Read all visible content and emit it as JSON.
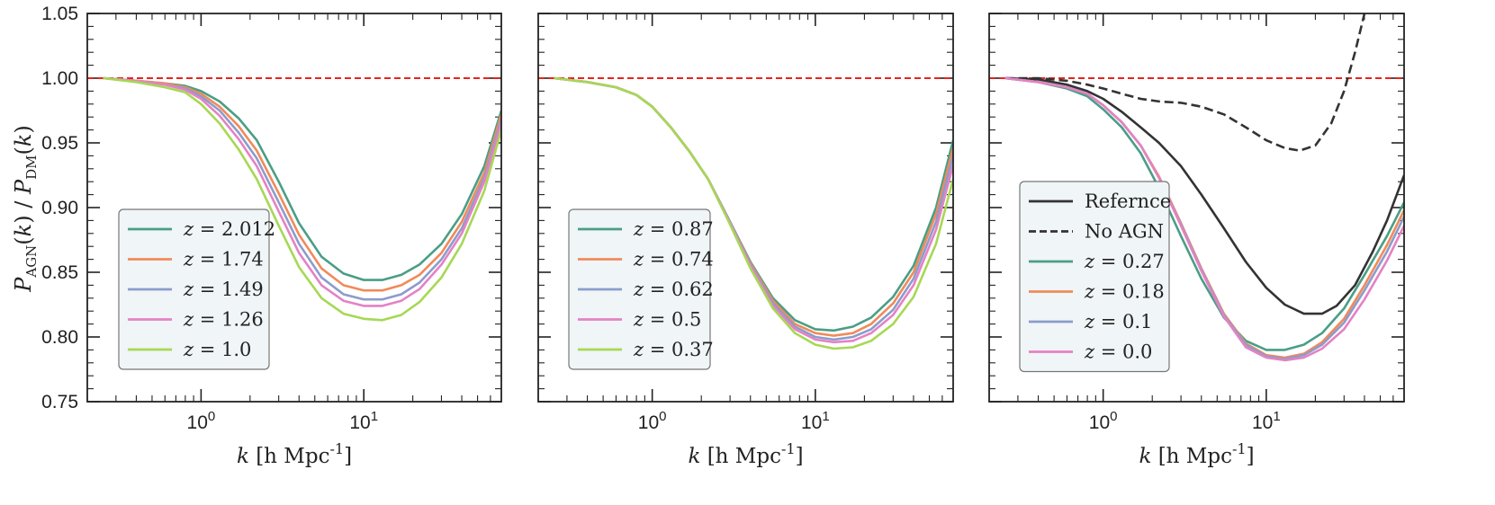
{
  "figure": {
    "ylabel": "P_AGN(k) / P_DM(k)",
    "ylabel_display": "PAGN(k) / PDM(k)"
  },
  "chart_data": [
    {
      "type": "line",
      "panel": "left",
      "xscale": "log",
      "xlim": [
        0.2,
        70
      ],
      "ylim": [
        0.75,
        1.05
      ],
      "xlabel": "k [h Mpc^-1]",
      "ylabel": "P_AGN(k) / P_DM(k)",
      "xticks": [
        {
          "value": 1,
          "label": "10^0"
        },
        {
          "value": 10,
          "label": "10^1"
        }
      ],
      "yticks": [
        0.75,
        0.8,
        0.85,
        0.9,
        0.95,
        1.0,
        1.05
      ],
      "ytick_labels": [
        "0.75",
        "0.80",
        "0.85",
        "0.90",
        "0.95",
        "1.00",
        "1.05"
      ],
      "reference_line": {
        "y": 1.0,
        "color": "#e8231d",
        "style": "dashed"
      },
      "legend": {
        "placement": "lower-left"
      },
      "series": [
        {
          "name": "z = 2.012",
          "z": "2.012",
          "color": "#4a9e86",
          "style": "solid",
          "x": [
            0.25,
            0.4,
            0.6,
            0.8,
            1.0,
            1.3,
            1.7,
            2.2,
            3.0,
            4.0,
            5.5,
            7.5,
            10,
            13,
            17,
            22,
            30,
            40,
            55,
            70
          ],
          "y": [
            1.0,
            0.998,
            0.996,
            0.994,
            0.99,
            0.982,
            0.969,
            0.952,
            0.92,
            0.888,
            0.862,
            0.849,
            0.844,
            0.844,
            0.848,
            0.856,
            0.872,
            0.895,
            0.932,
            0.975
          ]
        },
        {
          "name": "z = 1.74",
          "z": "1.74",
          "color": "#f08a5a",
          "style": "solid",
          "x": [
            0.25,
            0.4,
            0.6,
            0.8,
            1.0,
            1.3,
            1.7,
            2.2,
            3.0,
            4.0,
            5.5,
            7.5,
            10,
            13,
            17,
            22,
            30,
            40,
            55,
            70
          ],
          "y": [
            1.0,
            0.998,
            0.996,
            0.993,
            0.988,
            0.978,
            0.963,
            0.944,
            0.911,
            0.879,
            0.853,
            0.84,
            0.836,
            0.836,
            0.84,
            0.848,
            0.865,
            0.889,
            0.927,
            0.972
          ]
        },
        {
          "name": "z = 1.49",
          "z": "1.49",
          "color": "#8c9ccc",
          "style": "solid",
          "x": [
            0.25,
            0.4,
            0.6,
            0.8,
            1.0,
            1.3,
            1.7,
            2.2,
            3.0,
            4.0,
            5.5,
            7.5,
            10,
            13,
            17,
            22,
            30,
            40,
            55,
            70
          ],
          "y": [
            1.0,
            0.998,
            0.995,
            0.992,
            0.986,
            0.975,
            0.958,
            0.938,
            0.904,
            0.872,
            0.846,
            0.833,
            0.829,
            0.829,
            0.833,
            0.842,
            0.86,
            0.884,
            0.923,
            0.968
          ]
        },
        {
          "name": "z = 1.26",
          "z": "1.26",
          "color": "#e482c4",
          "style": "solid",
          "x": [
            0.25,
            0.4,
            0.6,
            0.8,
            1.0,
            1.3,
            1.7,
            2.2,
            3.0,
            4.0,
            5.5,
            7.5,
            10,
            13,
            17,
            22,
            30,
            40,
            55,
            70
          ],
          "y": [
            1.0,
            0.998,
            0.995,
            0.991,
            0.984,
            0.971,
            0.953,
            0.932,
            0.897,
            0.865,
            0.84,
            0.828,
            0.824,
            0.824,
            0.828,
            0.837,
            0.856,
            0.88,
            0.92,
            0.965
          ]
        },
        {
          "name": "z = 1.0",
          "z": "1.0",
          "color": "#a6d854",
          "style": "solid",
          "x": [
            0.25,
            0.4,
            0.6,
            0.8,
            1.0,
            1.3,
            1.7,
            2.2,
            3.0,
            4.0,
            5.5,
            7.5,
            10,
            13,
            17,
            22,
            30,
            40,
            55,
            70
          ],
          "y": [
            1.0,
            0.997,
            0.993,
            0.989,
            0.98,
            0.965,
            0.945,
            0.922,
            0.886,
            0.854,
            0.83,
            0.818,
            0.814,
            0.813,
            0.817,
            0.827,
            0.846,
            0.872,
            0.913,
            0.96
          ]
        }
      ]
    },
    {
      "type": "line",
      "panel": "middle",
      "xscale": "log",
      "xlim": [
        0.2,
        70
      ],
      "ylim": [
        0.75,
        1.05
      ],
      "xlabel": "k [h Mpc^-1]",
      "xticks": [
        {
          "value": 1,
          "label": "10^0"
        },
        {
          "value": 10,
          "label": "10^1"
        }
      ],
      "reference_line": {
        "y": 1.0,
        "color": "#e8231d",
        "style": "dashed"
      },
      "legend": {
        "placement": "lower-left"
      },
      "series": [
        {
          "name": "z = 0.87",
          "z": "0.87",
          "color": "#4a9e86",
          "style": "solid",
          "x": [
            0.25,
            0.4,
            0.6,
            0.8,
            1.0,
            1.3,
            1.7,
            2.2,
            3.0,
            4.0,
            5.5,
            7.5,
            10,
            13,
            17,
            22,
            30,
            40,
            55,
            70
          ],
          "y": [
            1.0,
            0.997,
            0.993,
            0.987,
            0.978,
            0.962,
            0.943,
            0.922,
            0.889,
            0.858,
            0.83,
            0.813,
            0.806,
            0.805,
            0.808,
            0.815,
            0.831,
            0.855,
            0.9,
            0.952
          ]
        },
        {
          "name": "z = 0.74",
          "z": "0.74",
          "color": "#f08a5a",
          "style": "solid",
          "x": [
            0.25,
            0.4,
            0.6,
            0.8,
            1.0,
            1.3,
            1.7,
            2.2,
            3.0,
            4.0,
            5.5,
            7.5,
            10,
            13,
            17,
            22,
            30,
            40,
            55,
            70
          ],
          "y": [
            1.0,
            0.997,
            0.993,
            0.987,
            0.978,
            0.962,
            0.943,
            0.922,
            0.889,
            0.857,
            0.828,
            0.81,
            0.803,
            0.801,
            0.803,
            0.81,
            0.826,
            0.85,
            0.895,
            0.946
          ]
        },
        {
          "name": "z = 0.62",
          "z": "0.62",
          "color": "#8c9ccc",
          "style": "solid",
          "x": [
            0.25,
            0.4,
            0.6,
            0.8,
            1.0,
            1.3,
            1.7,
            2.2,
            3.0,
            4.0,
            5.5,
            7.5,
            10,
            13,
            17,
            22,
            30,
            40,
            55,
            70
          ],
          "y": [
            1.0,
            0.997,
            0.993,
            0.987,
            0.978,
            0.962,
            0.943,
            0.922,
            0.889,
            0.856,
            0.826,
            0.808,
            0.8,
            0.798,
            0.8,
            0.806,
            0.821,
            0.845,
            0.889,
            0.94
          ]
        },
        {
          "name": "z = 0.5",
          "z": "0.5",
          "color": "#e482c4",
          "style": "solid",
          "x": [
            0.25,
            0.4,
            0.6,
            0.8,
            1.0,
            1.3,
            1.7,
            2.2,
            3.0,
            4.0,
            5.5,
            7.5,
            10,
            13,
            17,
            22,
            30,
            40,
            55,
            70
          ],
          "y": [
            1.0,
            0.997,
            0.993,
            0.987,
            0.978,
            0.962,
            0.943,
            0.922,
            0.888,
            0.855,
            0.824,
            0.806,
            0.798,
            0.796,
            0.797,
            0.803,
            0.817,
            0.84,
            0.883,
            0.933
          ]
        },
        {
          "name": "z = 0.37",
          "z": "0.37",
          "color": "#a6d854",
          "style": "solid",
          "x": [
            0.25,
            0.4,
            0.6,
            0.8,
            1.0,
            1.3,
            1.7,
            2.2,
            3.0,
            4.0,
            5.5,
            7.5,
            10,
            13,
            17,
            22,
            30,
            40,
            55,
            70
          ],
          "y": [
            1.0,
            0.997,
            0.993,
            0.987,
            0.978,
            0.962,
            0.943,
            0.922,
            0.887,
            0.853,
            0.822,
            0.803,
            0.794,
            0.791,
            0.792,
            0.797,
            0.81,
            0.831,
            0.872,
            0.922
          ]
        }
      ]
    },
    {
      "type": "line",
      "panel": "right",
      "xscale": "log",
      "xlim": [
        0.2,
        70
      ],
      "ylim": [
        0.75,
        1.05
      ],
      "xlabel": "k [h Mpc^-1]",
      "xticks": [
        {
          "value": 1,
          "label": "10^0"
        },
        {
          "value": 10,
          "label": "10^1"
        }
      ],
      "reference_line": {
        "y": 1.0,
        "color": "#e8231d",
        "style": "dashed"
      },
      "legend": {
        "placement": "lower-left"
      },
      "series": [
        {
          "name": "Refernce",
          "color": "#333333",
          "style": "solid",
          "x": [
            0.25,
            0.4,
            0.6,
            0.8,
            1.0,
            1.3,
            1.7,
            2.2,
            3.0,
            4.0,
            5.5,
            7.5,
            10,
            13,
            17,
            22,
            27,
            35,
            45,
            55,
            70
          ],
          "y": [
            1.0,
            0.999,
            0.995,
            0.99,
            0.984,
            0.974,
            0.962,
            0.95,
            0.932,
            0.91,
            0.884,
            0.858,
            0.838,
            0.825,
            0.818,
            0.818,
            0.824,
            0.84,
            0.866,
            0.89,
            0.925
          ]
        },
        {
          "name": "No AGN",
          "color": "#333333",
          "style": "dashed",
          "x": [
            0.25,
            0.4,
            0.6,
            0.8,
            1.0,
            1.3,
            1.7,
            2.2,
            3.0,
            4.0,
            5.5,
            7.5,
            10,
            13,
            16,
            20,
            25,
            30,
            35,
            40
          ],
          "y": [
            1.0,
            1.0,
            0.998,
            0.995,
            0.992,
            0.988,
            0.984,
            0.982,
            0.981,
            0.978,
            0.972,
            0.962,
            0.952,
            0.946,
            0.944,
            0.948,
            0.965,
            0.99,
            1.02,
            1.05
          ]
        },
        {
          "name": "z = 0.27",
          "z": "0.27",
          "color": "#4a9e86",
          "style": "solid",
          "x": [
            0.25,
            0.4,
            0.6,
            0.8,
            1.0,
            1.3,
            1.7,
            2.2,
            3.0,
            4.0,
            5.5,
            7.5,
            10,
            13,
            17,
            22,
            30,
            40,
            55,
            70
          ],
          "y": [
            1.0,
            0.997,
            0.992,
            0.986,
            0.976,
            0.962,
            0.942,
            0.915,
            0.878,
            0.845,
            0.815,
            0.797,
            0.79,
            0.79,
            0.794,
            0.803,
            0.822,
            0.848,
            0.878,
            0.904
          ]
        },
        {
          "name": "z = 0.18",
          "z": "0.18",
          "color": "#f08a5a",
          "style": "solid",
          "x": [
            0.25,
            0.4,
            0.6,
            0.8,
            1.0,
            1.3,
            1.7,
            2.2,
            3.0,
            4.0,
            5.5,
            7.5,
            10,
            13,
            17,
            22,
            30,
            40,
            55,
            70
          ],
          "y": [
            1.0,
            0.997,
            0.993,
            0.988,
            0.979,
            0.966,
            0.948,
            0.924,
            0.888,
            0.853,
            0.818,
            0.795,
            0.786,
            0.784,
            0.787,
            0.796,
            0.814,
            0.84,
            0.871,
            0.898
          ]
        },
        {
          "name": "z = 0.1",
          "z": "0.1",
          "color": "#8c9ccc",
          "style": "solid",
          "x": [
            0.25,
            0.4,
            0.6,
            0.8,
            1.0,
            1.3,
            1.7,
            2.2,
            3.0,
            4.0,
            5.5,
            7.5,
            10,
            13,
            17,
            22,
            30,
            40,
            55,
            70
          ],
          "y": [
            1.0,
            0.997,
            0.993,
            0.988,
            0.979,
            0.966,
            0.948,
            0.923,
            0.887,
            0.852,
            0.817,
            0.794,
            0.785,
            0.783,
            0.786,
            0.794,
            0.811,
            0.836,
            0.866,
            0.893
          ]
        },
        {
          "name": "z = 0.0",
          "z": "0.0",
          "color": "#e482c4",
          "style": "solid",
          "x": [
            0.25,
            0.4,
            0.6,
            0.8,
            1.0,
            1.3,
            1.7,
            2.2,
            3.0,
            4.0,
            5.5,
            7.5,
            10,
            13,
            17,
            22,
            30,
            40,
            55,
            70
          ],
          "y": [
            1.0,
            0.997,
            0.993,
            0.988,
            0.979,
            0.966,
            0.948,
            0.923,
            0.886,
            0.851,
            0.816,
            0.792,
            0.784,
            0.782,
            0.784,
            0.791,
            0.806,
            0.829,
            0.859,
            0.886
          ]
        }
      ]
    }
  ]
}
